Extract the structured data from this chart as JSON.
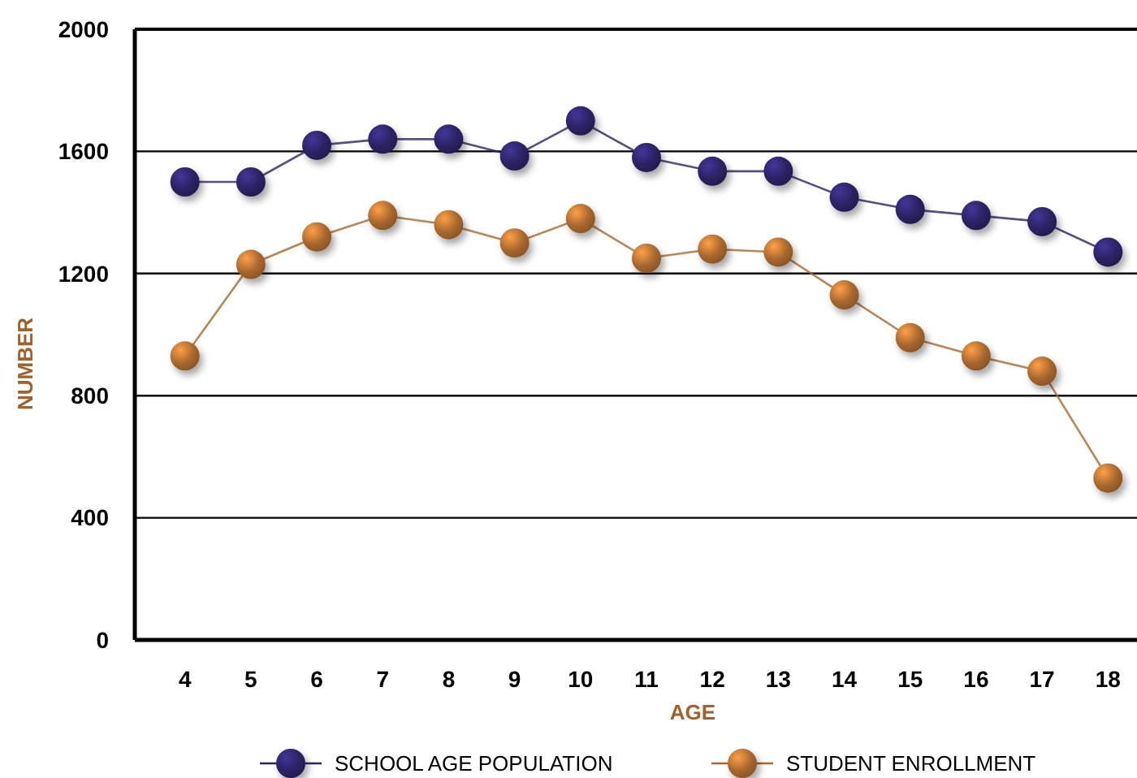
{
  "chart_data": {
    "type": "line",
    "xlabel": "AGE",
    "ylabel": "NUMBER",
    "categories": [
      "4",
      "5",
      "6",
      "7",
      "8",
      "9",
      "10",
      "11",
      "12",
      "13",
      "14",
      "15",
      "16",
      "17",
      "18"
    ],
    "series": [
      {
        "name": "SCHOOL AGE POPULATION",
        "color": "#2b2363",
        "values": [
          1500,
          1500,
          1620,
          1640,
          1640,
          1585,
          1700,
          1580,
          1535,
          1535,
          1450,
          1410,
          1390,
          1370,
          1270
        ]
      },
      {
        "name": "STUDENT ENROLLMENT",
        "color": "#a8682e",
        "values": [
          930,
          1230,
          1320,
          1390,
          1360,
          1300,
          1380,
          1250,
          1280,
          1270,
          1130,
          990,
          930,
          880,
          530
        ]
      }
    ],
    "ylim": [
      0,
      2000
    ],
    "yticks": [
      0,
      400,
      800,
      1200,
      1600,
      2000
    ],
    "grid": "y",
    "legend": "bottom",
    "marker": "circle",
    "line_style": "solid"
  }
}
